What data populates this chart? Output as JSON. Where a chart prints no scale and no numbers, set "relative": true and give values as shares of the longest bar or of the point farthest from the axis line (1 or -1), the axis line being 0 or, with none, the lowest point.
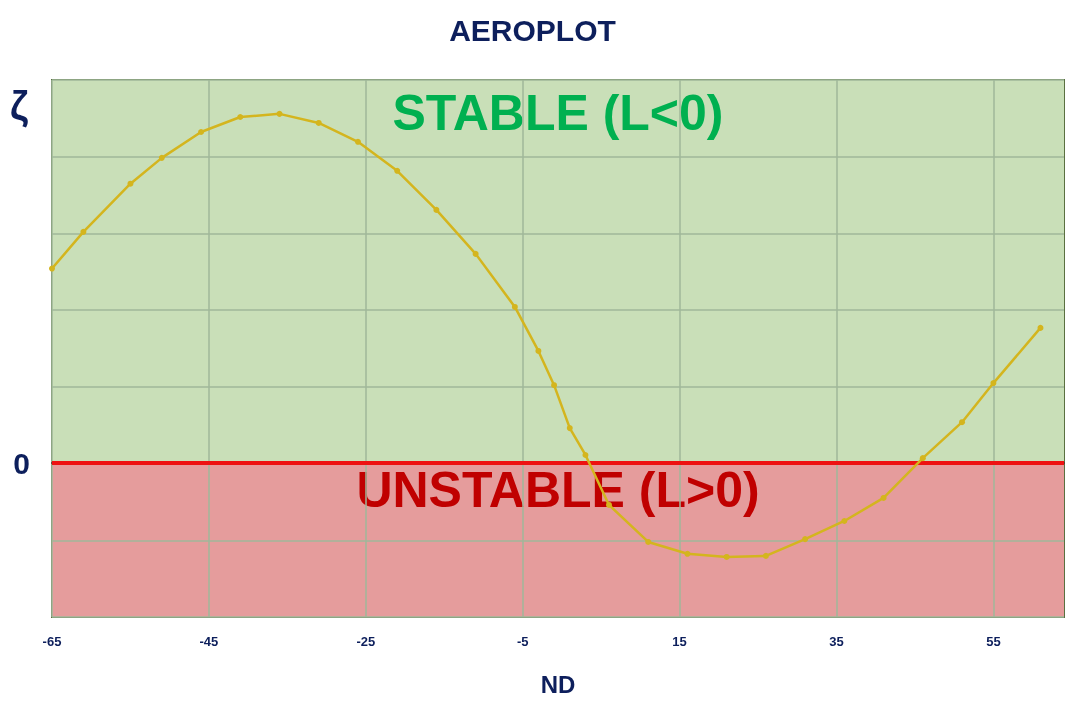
{
  "chart_data": {
    "type": "line",
    "title": "AEROPLOT",
    "xlabel": "ND",
    "ylabel": "ζ",
    "relative": true,
    "x": [
      -65,
      -61,
      -55,
      -51,
      -46,
      -41,
      -36,
      -31,
      -26,
      -21,
      -16,
      -11,
      -6,
      -3,
      -1,
      1,
      3,
      6,
      11,
      16,
      21,
      26,
      31,
      36,
      41,
      46,
      51,
      55,
      61
    ],
    "series": [
      {
        "color": "#d4b51e",
        "values": [
          0.557,
          0.662,
          0.8,
          0.874,
          0.948,
          0.991,
          1.0,
          0.974,
          0.92,
          0.837,
          0.725,
          0.599,
          0.447,
          0.321,
          0.223,
          0.1,
          0.023,
          -0.12,
          -0.226,
          -0.26,
          -0.269,
          -0.266,
          -0.218,
          -0.166,
          -0.1,
          0.014,
          0.117,
          0.229,
          0.387
        ]
      }
    ],
    "xlim": [
      -65,
      64
    ],
    "xticks": [
      -65,
      -45,
      -25,
      -5,
      15,
      35,
      55
    ],
    "bands": [
      {
        "axis": "y",
        "from": 0,
        "to": 1.097,
        "label": "STABLE (L<0)",
        "color": "#c9dfb8"
      },
      {
        "axis": "y",
        "from": -0.441,
        "to": 0,
        "label": "UNSTABLE (L>0)",
        "color": "#e59c9c"
      }
    ],
    "ref_lines": [
      {
        "axis": "y",
        "value": 0,
        "label": "0",
        "color": "#ee1111"
      }
    ],
    "grid": true,
    "marker": "circle",
    "line_style": "solid"
  }
}
